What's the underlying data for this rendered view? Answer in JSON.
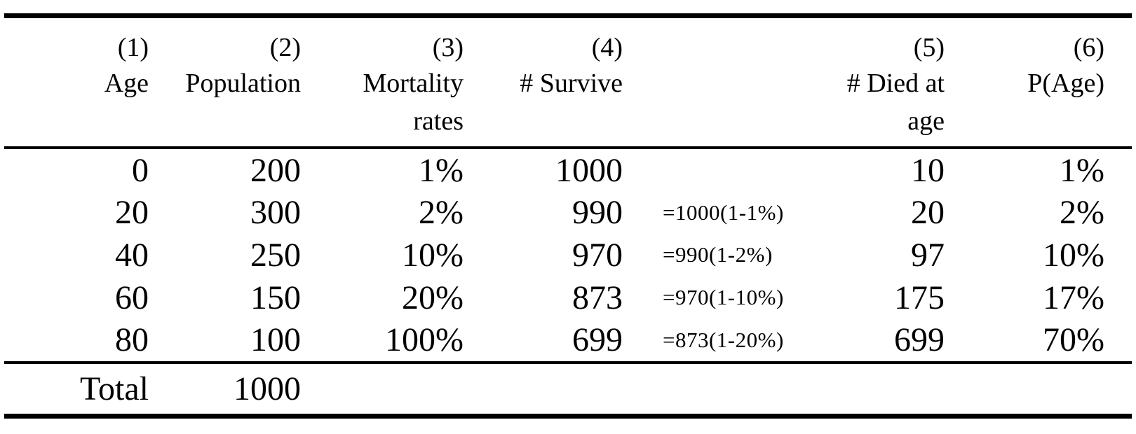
{
  "table": {
    "header": {
      "numbers": [
        "(1)",
        "(2)",
        "(3)",
        "(4)",
        "",
        "(5)",
        "(6)"
      ],
      "labels": [
        "Age",
        "Population",
        "Mortality",
        "# Survive",
        "",
        "# Died at",
        "P(Age)"
      ],
      "sublabels": [
        "",
        "",
        "rates",
        "",
        "",
        "age",
        ""
      ]
    },
    "rows": [
      [
        "0",
        "200",
        "1%",
        "1000",
        "",
        "10",
        "1%"
      ],
      [
        "20",
        "300",
        "2%",
        "990",
        "=1000(1-1%)",
        "20",
        "2%"
      ],
      [
        "40",
        "250",
        "10%",
        "970",
        "=990(1-2%)",
        "97",
        "10%"
      ],
      [
        "60",
        "150",
        "20%",
        "873",
        "=970(1-10%)",
        "175",
        "17%"
      ],
      [
        "80",
        "100",
        "100%",
        "699",
        "=873(1-20%)",
        "699",
        "70%"
      ]
    ],
    "total": {
      "label": "Total",
      "population": "1000"
    },
    "colors": {
      "text": "#000000",
      "background": "#ffffff",
      "rule": "#000000"
    }
  }
}
